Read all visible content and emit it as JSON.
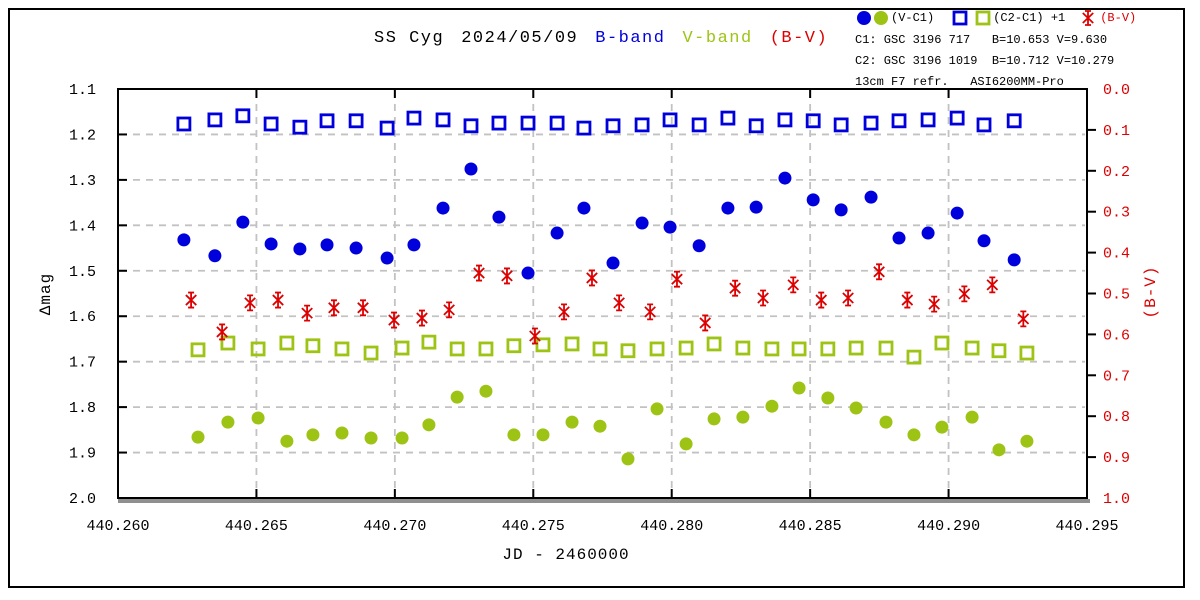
{
  "title": {
    "object": "SS Cyg",
    "date": "2024/05/09",
    "b_band": "B-band",
    "v_band": "V-band",
    "bv": "(B-V)"
  },
  "legend": {
    "vc1_label": "(V-C1)",
    "c2c1_label": "(C2-C1) +1",
    "bv_label": "(B-V)"
  },
  "info": {
    "c1": "C1: GSC 3196 717   B=10.653 V=9.630",
    "c2": "C2: GSC 3196 1019  B=10.712 V=10.279",
    "equipment": "13cm F7 refr.   ASI6200MM-Pro"
  },
  "colors": {
    "b_band": "#0000dd",
    "v_band": "#9dc414",
    "bv": "#dd0000",
    "grid": "#c2c2c2"
  },
  "chart_data": {
    "type": "scatter",
    "title": "SS Cyg 2024/05/09 B-band V-band (B-V)",
    "xlabel": "JD - 2460000",
    "ylabel_left": "Δmag",
    "ylabel_right": "(B-V)",
    "x_range": [
      440.26,
      440.295
    ],
    "y_left_range": [
      1.1,
      2.0
    ],
    "y_right_range": [
      0.0,
      1.0
    ],
    "x_ticks": [
      "440.260",
      "440.265",
      "440.270",
      "440.275",
      "440.280",
      "440.285",
      "440.290",
      "440.295"
    ],
    "y_left_ticks": [
      "1.1",
      "1.2",
      "1.3",
      "1.4",
      "1.5",
      "1.6",
      "1.7",
      "1.8",
      "1.9",
      "2.0"
    ],
    "y_right_ticks": [
      "0.0",
      "0.1",
      "0.2",
      "0.3",
      "0.4",
      "0.5",
      "0.6",
      "0.7",
      "0.8",
      "0.9",
      "1.0"
    ],
    "x_grid": [
      440.265,
      440.27,
      440.275,
      440.28,
      440.285,
      440.29
    ],
    "y_grid": [
      1.2,
      1.3,
      1.4,
      1.5,
      1.6,
      1.7,
      1.8,
      1.9
    ],
    "grid": true,
    "series": [
      {
        "name": "B-band (V-C1)",
        "marker": "circle",
        "color": "#0000dd",
        "axis": "left",
        "x": [
          440.26238,
          440.2635,
          440.26451,
          440.26553,
          440.26657,
          440.26755,
          440.2686,
          440.26972,
          440.27069,
          440.27174,
          440.27275,
          440.27376,
          440.27481,
          440.27586,
          440.27683,
          440.27788,
          440.27893,
          440.27994,
          440.28099,
          440.28203,
          440.28305,
          440.28409,
          440.28511,
          440.28612,
          440.2872,
          440.28821,
          440.28926,
          440.29031,
          440.29128,
          440.29237
        ],
        "y": [
          1.432,
          1.467,
          1.393,
          1.441,
          1.452,
          1.443,
          1.45,
          1.472,
          1.443,
          1.362,
          1.276,
          1.382,
          1.505,
          1.417,
          1.362,
          1.483,
          1.395,
          1.404,
          1.445,
          1.362,
          1.36,
          1.296,
          1.344,
          1.366,
          1.338,
          1.428,
          1.417,
          1.373,
          1.434,
          1.476
        ]
      },
      {
        "name": "B-band (C2-C1)+1",
        "marker": "square",
        "color": "#0000dd",
        "axis": "left",
        "x": [
          440.26238,
          440.2635,
          440.26451,
          440.26553,
          440.26657,
          440.26755,
          440.2686,
          440.26972,
          440.27069,
          440.27174,
          440.27275,
          440.27376,
          440.27481,
          440.27586,
          440.27683,
          440.27788,
          440.27893,
          440.27994,
          440.28099,
          440.28203,
          440.28305,
          440.28409,
          440.28511,
          440.28612,
          440.2872,
          440.28821,
          440.28926,
          440.29031,
          440.29128,
          440.29237
        ],
        "y": [
          1.177,
          1.168,
          1.159,
          1.177,
          1.184,
          1.17,
          1.17,
          1.186,
          1.164,
          1.168,
          1.181,
          1.175,
          1.175,
          1.175,
          1.186,
          1.181,
          1.179,
          1.168,
          1.179,
          1.164,
          1.181,
          1.168,
          1.17,
          1.179,
          1.175,
          1.17,
          1.168,
          1.164,
          1.179,
          1.17
        ]
      },
      {
        "name": "V-band (V-C1)",
        "marker": "circle",
        "color": "#9dc414",
        "axis": "left",
        "x": [
          440.26289,
          440.26397,
          440.26506,
          440.2661,
          440.26704,
          440.26809,
          440.26914,
          440.27026,
          440.27123,
          440.27225,
          440.27329,
          440.2743,
          440.27535,
          440.2764,
          440.27741,
          440.27842,
          440.27947,
          440.28052,
          440.28153,
          440.28257,
          440.28362,
          440.2846,
          440.28564,
          440.28666,
          440.28774,
          440.28875,
          440.28976,
          440.29085,
          440.29182,
          440.29283
        ],
        "y": [
          1.866,
          1.833,
          1.824,
          1.875,
          1.861,
          1.857,
          1.868,
          1.868,
          1.839,
          1.778,
          1.765,
          1.861,
          1.861,
          1.833,
          1.842,
          1.914,
          1.804,
          1.881,
          1.826,
          1.822,
          1.798,
          1.758,
          1.78,
          1.802,
          1.833,
          1.861,
          1.844,
          1.822,
          1.894,
          1.875
        ]
      },
      {
        "name": "V-band (C2-C1)+1",
        "marker": "square",
        "color": "#9dc414",
        "axis": "left",
        "x": [
          440.26289,
          440.26397,
          440.26506,
          440.2661,
          440.26704,
          440.26809,
          440.26914,
          440.27026,
          440.27123,
          440.27225,
          440.27329,
          440.2743,
          440.27535,
          440.2764,
          440.27741,
          440.27842,
          440.27947,
          440.28052,
          440.28153,
          440.28257,
          440.28362,
          440.2846,
          440.28564,
          440.28666,
          440.28774,
          440.28875,
          440.28976,
          440.29085,
          440.29182,
          440.29283
        ],
        "y": [
          1.674,
          1.659,
          1.672,
          1.659,
          1.665,
          1.672,
          1.681,
          1.67,
          1.657,
          1.672,
          1.672,
          1.665,
          1.663,
          1.661,
          1.672,
          1.676,
          1.672,
          1.67,
          1.661,
          1.67,
          1.672,
          1.672,
          1.672,
          1.67,
          1.67,
          1.69,
          1.659,
          1.67,
          1.676,
          1.681
        ]
      },
      {
        "name": "(B-V)",
        "marker": "asterisk",
        "color": "#dd0000",
        "axis": "right",
        "x": [
          440.26264,
          440.26376,
          440.26477,
          440.26578,
          440.26683,
          440.2678,
          440.26885,
          440.26997,
          440.27098,
          440.27196,
          440.27304,
          440.27405,
          440.27506,
          440.27611,
          440.27712,
          440.2781,
          440.27922,
          440.28019,
          440.28121,
          440.28229,
          440.2833,
          440.28439,
          440.2854,
          440.28637,
          440.28749,
          440.28851,
          440.28948,
          440.29057,
          440.29158,
          440.2927
        ],
        "y": [
          0.516,
          0.594,
          0.523,
          0.516,
          0.548,
          0.535,
          0.535,
          0.565,
          0.56,
          0.54,
          0.45,
          0.457,
          0.604,
          0.545,
          0.462,
          0.523,
          0.545,
          0.465,
          0.572,
          0.487,
          0.511,
          0.479,
          0.516,
          0.511,
          0.447,
          0.516,
          0.526,
          0.501,
          0.479,
          0.562
        ]
      }
    ]
  }
}
